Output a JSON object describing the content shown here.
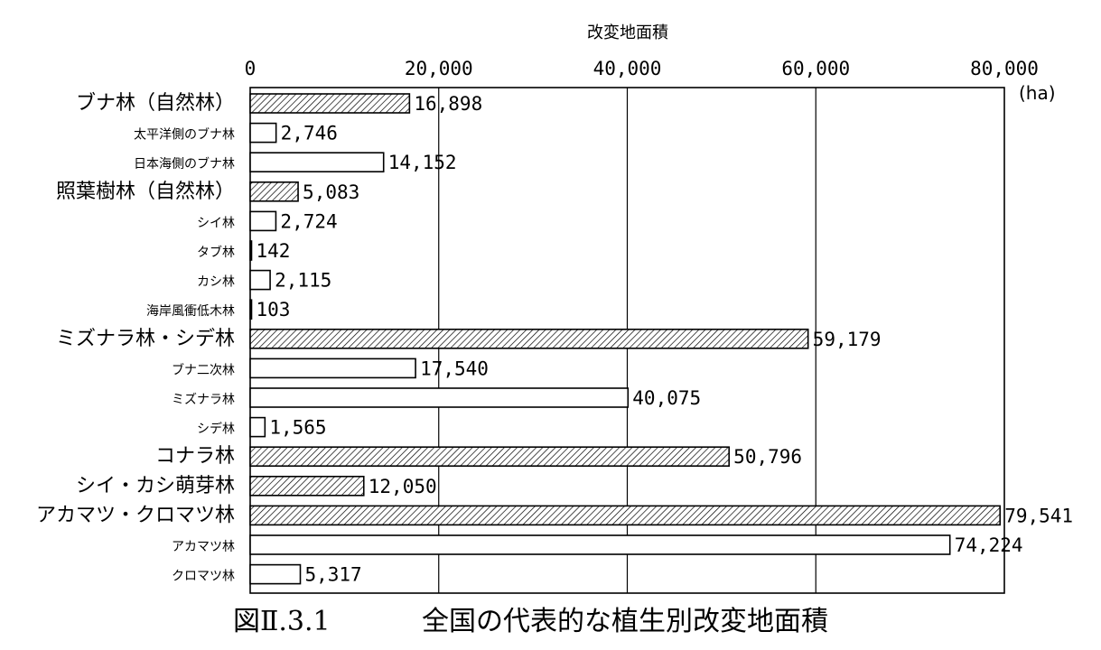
{
  "chart_data": {
    "type": "bar",
    "orientation": "horizontal",
    "title": "改変地面積",
    "unit": "(ha)",
    "xlim": [
      0,
      80000
    ],
    "x_ticks": [
      "0",
      "20,000",
      "40,000",
      "60,000",
      "80,000"
    ],
    "x_tick_values": [
      0,
      20000,
      40000,
      60000,
      80000
    ],
    "x_axis_position": "top",
    "grid": true,
    "colors": {
      "category_bar": "#ffffff",
      "subtype_bar": "#ffffff",
      "hatch_stroke": "#000000",
      "outline": "#000000",
      "gridline": "#000000"
    },
    "categories": [
      "ブナ林（自然林）",
      "太平洋側のブナ林",
      "日本海側のブナ林",
      "照葉樹林（自然林）",
      "シイ林",
      "タブ林",
      "カシ林",
      "海岸風衝低木林",
      "ミズナラ林・シデ林",
      "ブナ二次林",
      "ミズナラ林",
      "シデ林",
      "コナラ林",
      "シイ・カシ萌芽林",
      "アカマツ・クロマツ林",
      "アカマツ林",
      "クロマツ林"
    ],
    "values": [
      16898,
      2746,
      14152,
      5083,
      2724,
      142,
      2115,
      103,
      59179,
      17540,
      40075,
      1565,
      50796,
      12050,
      79541,
      74224,
      5317
    ],
    "data_labels": [
      "16,898",
      "2,746",
      "14,152",
      "5,083",
      "2,724",
      "142",
      "2,115",
      "103",
      "59,179",
      "17,540",
      "40,075",
      "1,565",
      "50,796",
      "12,050",
      "79,541",
      "74,224",
      "5,317"
    ],
    "bar_style": [
      "hatched",
      "hollow",
      "hollow",
      "hatched",
      "hollow",
      "hollow",
      "hollow",
      "hollow",
      "hatched",
      "hollow",
      "hollow",
      "hollow",
      "hatched",
      "hatched",
      "hatched",
      "hollow",
      "hollow"
    ],
    "label_size": [
      "large",
      "small",
      "small",
      "large",
      "small",
      "small",
      "small",
      "small",
      "large",
      "small",
      "small",
      "small",
      "large",
      "large",
      "large",
      "small",
      "small"
    ]
  },
  "caption": {
    "number": "図Ⅱ.3.1",
    "title": "全国の代表的な植生別改変地面積"
  }
}
